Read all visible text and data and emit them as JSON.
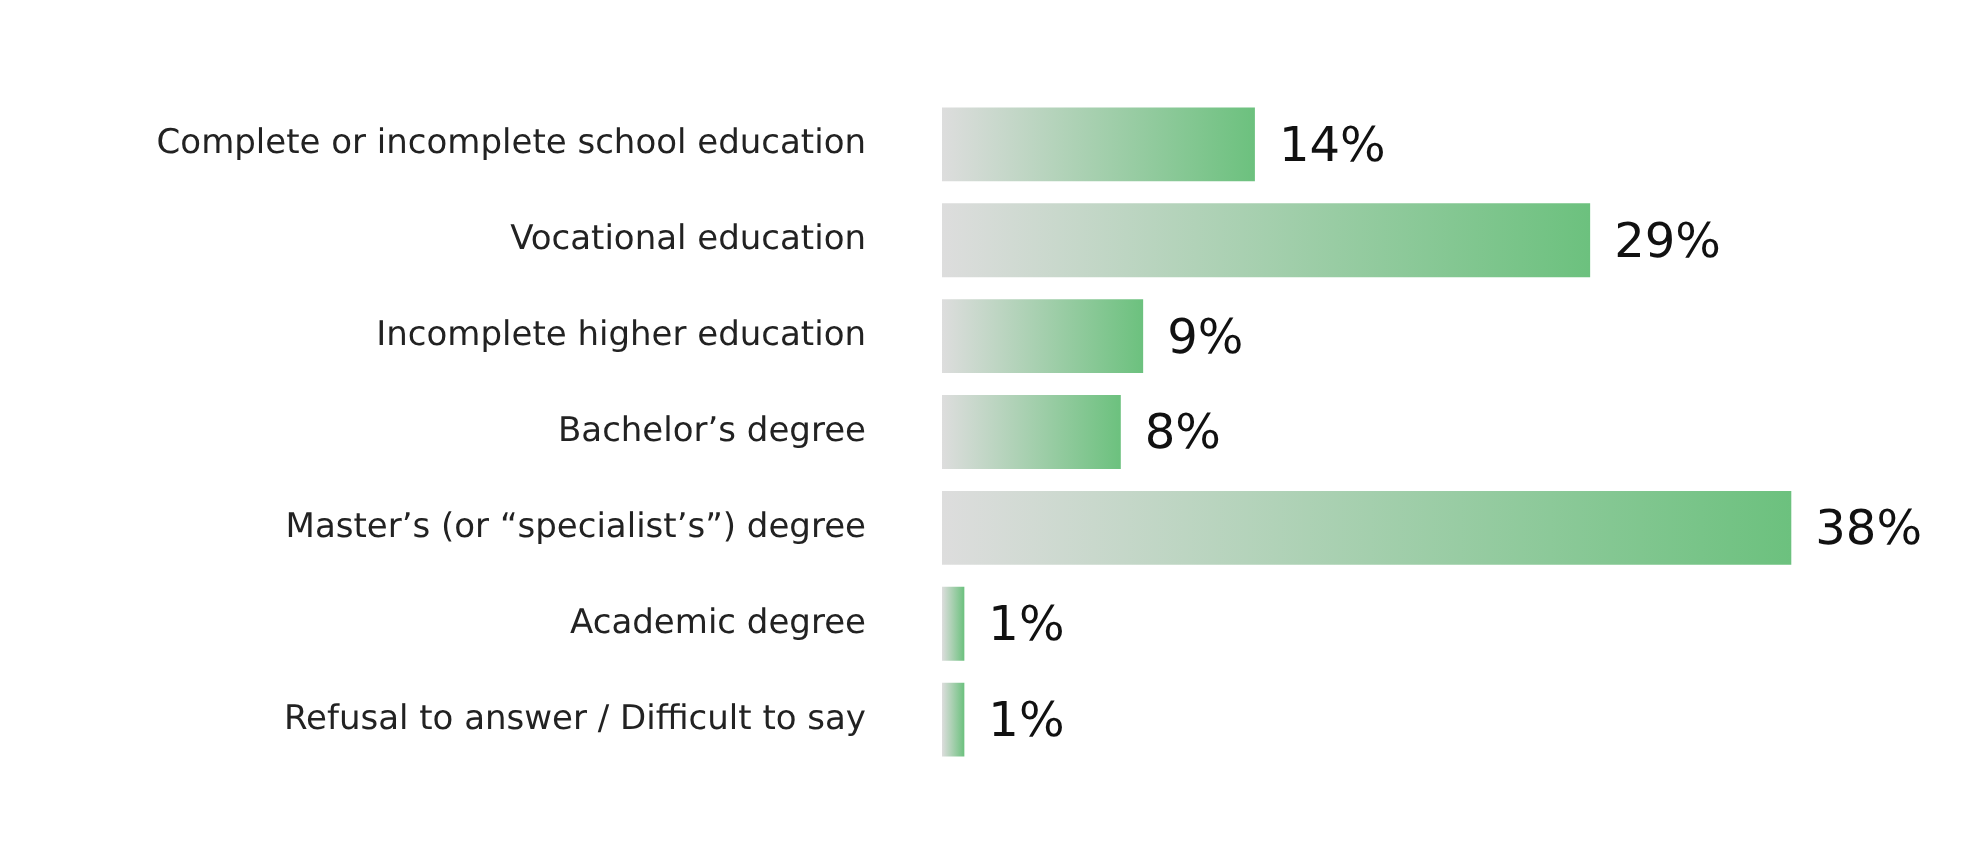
{
  "chart_data": {
    "type": "bar",
    "orientation": "horizontal",
    "categories": [
      "Complete or incomplete school education",
      "Vocational education",
      "Incomplete higher education",
      "Bachelor’s degree",
      "Master’s (or “specialist’s”) degree",
      "Academic degree",
      "Refusal to answer / Difficult to say"
    ],
    "values": [
      14,
      29,
      9,
      8,
      38,
      1,
      1
    ],
    "value_labels": [
      "14%",
      "29%",
      "9%",
      "8%",
      "38%",
      "1%",
      "1%"
    ],
    "color": "#6cc17e",
    "grid": false,
    "legend": false
  }
}
